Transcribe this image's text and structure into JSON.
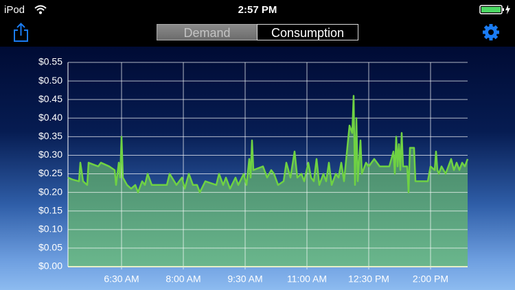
{
  "status_bar": {
    "carrier": "iPod",
    "time": "2:57 PM"
  },
  "nav": {
    "segments": [
      "Demand",
      "Consumption"
    ]
  },
  "chart_data": {
    "type": "line",
    "x": [
      312,
      318,
      328,
      330,
      334,
      340,
      342,
      356,
      360,
      372,
      380,
      382,
      386,
      388,
      390,
      392,
      398,
      404,
      410,
      414,
      420,
      424,
      428,
      434,
      448,
      456,
      460,
      470,
      478,
      482,
      488,
      494,
      500,
      504,
      512,
      528,
      532,
      538,
      542,
      548,
      556,
      560,
      568,
      572,
      576,
      578,
      580,
      582,
      596,
      602,
      608,
      612,
      618,
      626,
      630,
      636,
      642,
      646,
      652,
      656,
      662,
      666,
      670,
      674,
      678,
      684,
      688,
      692,
      696,
      702,
      706,
      710,
      714,
      722,
      726,
      728,
      730,
      732,
      734,
      738,
      740,
      746,
      750,
      758,
      766,
      776,
      780,
      786,
      788,
      790,
      792,
      794,
      796,
      798,
      800,
      806,
      808,
      810,
      816,
      818,
      830,
      836,
      840,
      846,
      848,
      850,
      852,
      856,
      862,
      866,
      870,
      874,
      878,
      882,
      886,
      890,
      894
    ],
    "series": [
      {
        "color": "#6fd243",
        "values": [
          0.24,
          0.235,
          0.23,
          0.28,
          0.23,
          0.22,
          0.28,
          0.27,
          0.28,
          0.27,
          0.26,
          0.22,
          0.28,
          0.24,
          0.35,
          0.24,
          0.22,
          0.21,
          0.22,
          0.2,
          0.23,
          0.22,
          0.25,
          0.22,
          0.22,
          0.22,
          0.25,
          0.22,
          0.24,
          0.21,
          0.25,
          0.22,
          0.22,
          0.2,
          0.23,
          0.22,
          0.25,
          0.22,
          0.24,
          0.21,
          0.24,
          0.22,
          0.25,
          0.22,
          0.29,
          0.24,
          0.34,
          0.26,
          0.27,
          0.24,
          0.26,
          0.25,
          0.22,
          0.23,
          0.28,
          0.24,
          0.31,
          0.24,
          0.25,
          0.23,
          0.28,
          0.24,
          0.23,
          0.29,
          0.22,
          0.25,
          0.23,
          0.28,
          0.22,
          0.25,
          0.24,
          0.28,
          0.23,
          0.38,
          0.36,
          0.46,
          0.22,
          0.4,
          0.23,
          0.34,
          0.25,
          0.28,
          0.27,
          0.29,
          0.27,
          0.27,
          0.27,
          0.31,
          0.25,
          0.35,
          0.27,
          0.33,
          0.26,
          0.36,
          0.27,
          0.27,
          0.2,
          0.32,
          0.32,
          0.23,
          0.23,
          0.23,
          0.27,
          0.26,
          0.31,
          0.26,
          0.25,
          0.27,
          0.25,
          0.27,
          0.29,
          0.26,
          0.28,
          0.26,
          0.28,
          0.27,
          0.29
        ]
      }
    ],
    "area_color": "#6ab888",
    "xlim": [
      312,
      894
    ],
    "xticks": [
      {
        "value": 390,
        "label": "6:30 AM"
      },
      {
        "value": 480,
        "label": "8:00 AM"
      },
      {
        "value": 570,
        "label": "9:30 AM"
      },
      {
        "value": 660,
        "label": "11:00 AM"
      },
      {
        "value": 750,
        "label": "12:30 PM"
      },
      {
        "value": 840,
        "label": "2:00 PM"
      }
    ],
    "ylim": [
      0,
      0.55
    ],
    "yticks": [
      {
        "value": 0,
        "label": "$0.00"
      },
      {
        "value": 0.05,
        "label": "$0.05"
      },
      {
        "value": 0.1,
        "label": "$0.10"
      },
      {
        "value": 0.15,
        "label": "$0.15"
      },
      {
        "value": 0.2,
        "label": "$0.20"
      },
      {
        "value": 0.25,
        "label": "$0.25"
      },
      {
        "value": 0.3,
        "label": "$0.30"
      },
      {
        "value": 0.35,
        "label": "$0.35"
      },
      {
        "value": 0.4,
        "label": "$0.40"
      },
      {
        "value": 0.45,
        "label": "$0.45"
      },
      {
        "value": 0.5,
        "label": "$0.50"
      },
      {
        "value": 0.55,
        "label": "$0.55"
      }
    ],
    "grid": true
  }
}
